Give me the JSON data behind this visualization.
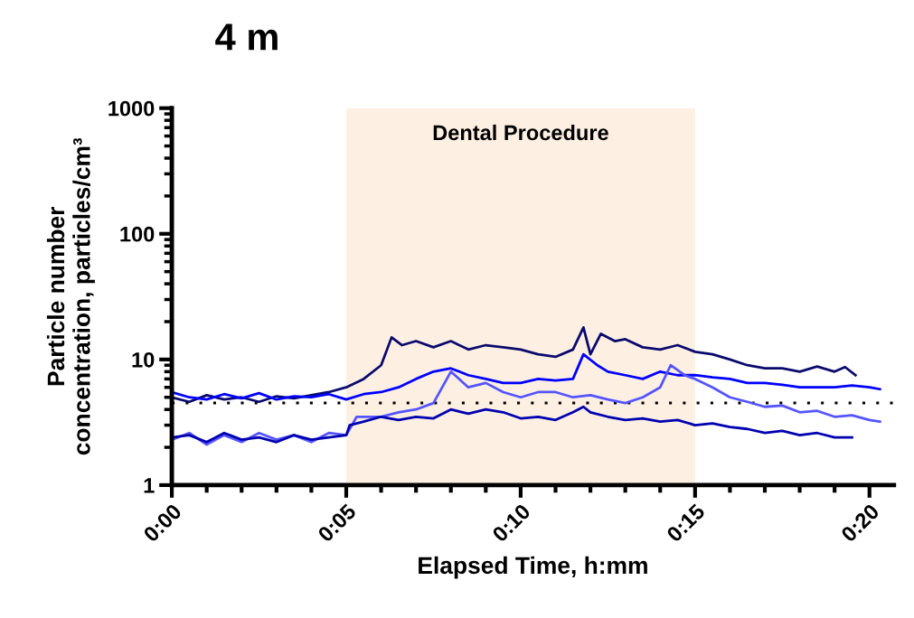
{
  "chart_data": {
    "type": "line",
    "title": "4 m",
    "xlabel": "Elapsed Time, h:mm",
    "ylabel": "Particle number\nconcentration, particles/cm³",
    "log": "y",
    "grid": false,
    "legend": false,
    "marker": "none",
    "line_style": "solid",
    "xlim": [
      0,
      20.7
    ],
    "ylim": [
      1,
      1000
    ],
    "xticks": [
      {
        "value": 0,
        "label": "0:00"
      },
      {
        "value": 1,
        "label": null
      },
      {
        "value": 2,
        "label": null
      },
      {
        "value": 3,
        "label": null
      },
      {
        "value": 4,
        "label": null
      },
      {
        "value": 5,
        "label": "0:05"
      },
      {
        "value": 6,
        "label": null
      },
      {
        "value": 7,
        "label": null
      },
      {
        "value": 8,
        "label": null
      },
      {
        "value": 9,
        "label": null
      },
      {
        "value": 10,
        "label": "0:10"
      },
      {
        "value": 11,
        "label": null
      },
      {
        "value": 12,
        "label": null
      },
      {
        "value": 13,
        "label": null
      },
      {
        "value": 14,
        "label": null
      },
      {
        "value": 15,
        "label": "0:15"
      },
      {
        "value": 16,
        "label": null
      },
      {
        "value": 17,
        "label": null
      },
      {
        "value": 18,
        "label": null
      },
      {
        "value": 19,
        "label": null
      },
      {
        "value": 20,
        "label": "0:20"
      }
    ],
    "yticks": [
      1,
      10,
      100,
      1000
    ],
    "bands": [
      {
        "axis": "x",
        "from": 5,
        "to": 15,
        "label": "Dental Procedure",
        "color": "#fdf0e3"
      }
    ],
    "ref_lines": [
      {
        "axis": "y",
        "value": 4.5,
        "color": "#000000",
        "line_style": "dotted"
      }
    ],
    "series": [
      {
        "color": "#0a0a6e",
        "x": [
          0,
          0.5,
          1,
          1.5,
          2,
          2.5,
          3,
          3.5,
          4,
          4.5,
          5,
          5.5,
          6,
          6.3,
          6.6,
          7,
          7.5,
          8,
          8.5,
          9,
          9.5,
          10,
          10.5,
          11,
          11.5,
          11.8,
          12,
          12.3,
          12.7,
          13,
          13.5,
          14,
          14.5,
          15,
          15.5,
          16,
          16.5,
          17,
          17.5,
          18,
          18.5,
          19,
          19.3,
          19.6
        ],
        "values": [
          5,
          4.6,
          5.2,
          4.8,
          5,
          4.6,
          5.1,
          4.9,
          5.2,
          5.5,
          6,
          7,
          9,
          15,
          13,
          14,
          12.5,
          14,
          12,
          13,
          12.5,
          12,
          11,
          10.5,
          12,
          18,
          11,
          16,
          14,
          14.5,
          12.5,
          12,
          13,
          11.5,
          11,
          10,
          9,
          8.5,
          8.5,
          8,
          8.8,
          8,
          8.7,
          7.5
        ]
      },
      {
        "color": "#0000ff",
        "x": [
          0,
          0.5,
          1,
          1.5,
          2,
          2.5,
          3,
          3.5,
          4,
          4.5,
          5,
          5.5,
          6,
          6.5,
          7,
          7.5,
          8,
          8.5,
          9,
          9.5,
          10,
          10.5,
          11,
          11.5,
          11.8,
          12.2,
          12.5,
          13,
          13.5,
          14,
          14.5,
          15,
          15.5,
          16,
          16.5,
          17,
          17.5,
          18,
          18.5,
          19,
          19.5,
          20,
          20.3
        ],
        "values": [
          5.5,
          5,
          4.8,
          5.3,
          4.9,
          5.4,
          4.8,
          5.1,
          5,
          5.3,
          4.8,
          5.3,
          5.5,
          6,
          7,
          8,
          8.5,
          7.5,
          7,
          6.5,
          6.5,
          7,
          6.8,
          7,
          11,
          9,
          8,
          7.5,
          7,
          8,
          7.5,
          7.5,
          7.2,
          7,
          6.5,
          6.5,
          6.3,
          6,
          6,
          6,
          6.2,
          6,
          5.8
        ]
      },
      {
        "color": "#5555ff",
        "x": [
          0,
          0.5,
          1,
          1.5,
          2,
          2.5,
          3,
          3.5,
          4,
          4.5,
          5,
          5.3,
          6,
          6.5,
          7,
          7.5,
          8,
          8.5,
          9,
          9.5,
          10,
          10.5,
          11,
          11.5,
          12,
          12.5,
          13,
          13.5,
          14,
          14.3,
          14.7,
          15,
          15.5,
          16,
          16.5,
          17,
          17.5,
          18,
          18.5,
          19,
          19.5,
          20,
          20.3
        ],
        "values": [
          2.3,
          2.6,
          2.1,
          2.5,
          2.2,
          2.6,
          2.3,
          2.5,
          2.2,
          2.6,
          2.5,
          3.5,
          3.5,
          3.8,
          4,
          4.5,
          8,
          6,
          6.5,
          5.5,
          5,
          5.5,
          5.5,
          5,
          5.2,
          4.8,
          4.5,
          5,
          6,
          9,
          7.5,
          7,
          6,
          5,
          4.6,
          4.2,
          4.3,
          3.8,
          3.9,
          3.5,
          3.6,
          3.3,
          3.2
        ]
      },
      {
        "color": "#0000b0",
        "x": [
          0,
          0.5,
          1,
          1.5,
          2,
          2.5,
          3,
          3.5,
          4,
          4.5,
          5,
          5.1,
          5.5,
          6,
          6.5,
          7,
          7.5,
          8,
          8.5,
          9,
          9.5,
          10,
          10.5,
          11,
          11.5,
          11.8,
          12,
          12.5,
          13,
          13.5,
          14,
          14.5,
          15,
          15.5,
          16,
          16.5,
          17,
          17.5,
          18,
          18.5,
          19,
          19.5
        ],
        "values": [
          2.4,
          2.5,
          2.2,
          2.6,
          2.3,
          2.4,
          2.2,
          2.5,
          2.3,
          2.4,
          2.5,
          3,
          3.2,
          3.5,
          3.3,
          3.5,
          3.4,
          4,
          3.7,
          4,
          3.8,
          3.4,
          3.5,
          3.3,
          3.8,
          4.2,
          3.8,
          3.5,
          3.3,
          3.4,
          3.2,
          3.3,
          3,
          3.1,
          2.9,
          2.8,
          2.6,
          2.7,
          2.5,
          2.6,
          2.4,
          2.4
        ]
      }
    ]
  }
}
